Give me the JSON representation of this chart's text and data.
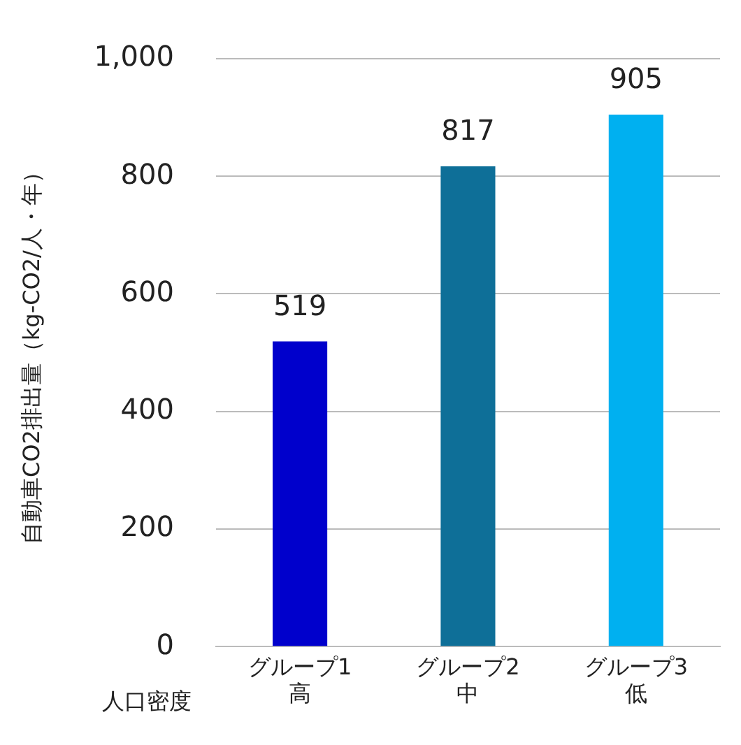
{
  "chart_data": {
    "type": "bar",
    "ylabel": "自動車CO2排出量（kg-CO2/人・年）",
    "xlabel": "人口密度",
    "categories": [
      "グループ1\n高",
      "グループ2\n中",
      "グループ3\n低"
    ],
    "values": [
      519,
      817,
      905
    ],
    "colors": [
      "#0000cc",
      "#0e6f98",
      "#00b0f0"
    ],
    "ylim": [
      0,
      1000
    ],
    "yticks": [
      0,
      200,
      400,
      600,
      800,
      {
        "value": 1000,
        "label": "1,000"
      }
    ],
    "grid": "y",
    "data_labels": true,
    "legend": false
  }
}
